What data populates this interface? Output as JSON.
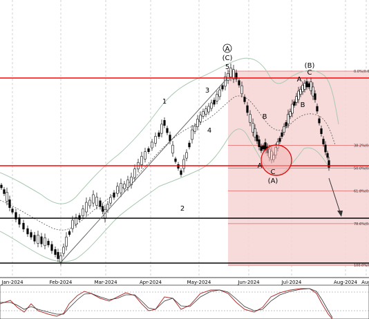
{
  "chart_data": {
    "type": "candlestick",
    "x_ticks": [
      "Jan-2024",
      "Feb-2024",
      "Mar-2024",
      "Apr-2024",
      "May-2024",
      "Jun-2024",
      "Jul-2024",
      "Aug-2024",
      "Aug"
    ],
    "fib_levels": [
      {
        "label": "0.0%(0.6%)",
        "ratio": 0.0
      },
      {
        "label": "38.2%(0.63%)",
        "ratio": 0.382
      },
      {
        "label": "50.0%(0.63%)",
        "ratio": 0.5
      },
      {
        "label": "61.8%(0.64%)",
        "ratio": 0.618
      },
      {
        "label": "78.6%(0.65%)",
        "ratio": 0.786
      },
      {
        "label": "100.0%(0.66%)",
        "ratio": 1.0
      }
    ],
    "wave_labels": [
      {
        "text": "A",
        "circled": true
      },
      {
        "text": "C",
        "paren": true
      },
      {
        "text": "5"
      },
      {
        "text": "1"
      },
      {
        "text": "3"
      },
      {
        "text": "4"
      },
      {
        "text": "2"
      },
      {
        "text": "B",
        "paren": true
      },
      {
        "text": "C"
      },
      {
        "text": "A"
      },
      {
        "text": "B"
      },
      {
        "text": "B"
      },
      {
        "text": "A"
      },
      {
        "text": "C"
      },
      {
        "text": "A",
        "paren": true
      }
    ],
    "indicator": {
      "type": "stochastic",
      "lines": 2
    },
    "colors": {
      "support": "#000000",
      "resistance": "#ff0000",
      "fib": "#e06666",
      "zone": "#f6d5d5",
      "bollinger": "#a8c8b0",
      "candles": "#000000"
    }
  }
}
